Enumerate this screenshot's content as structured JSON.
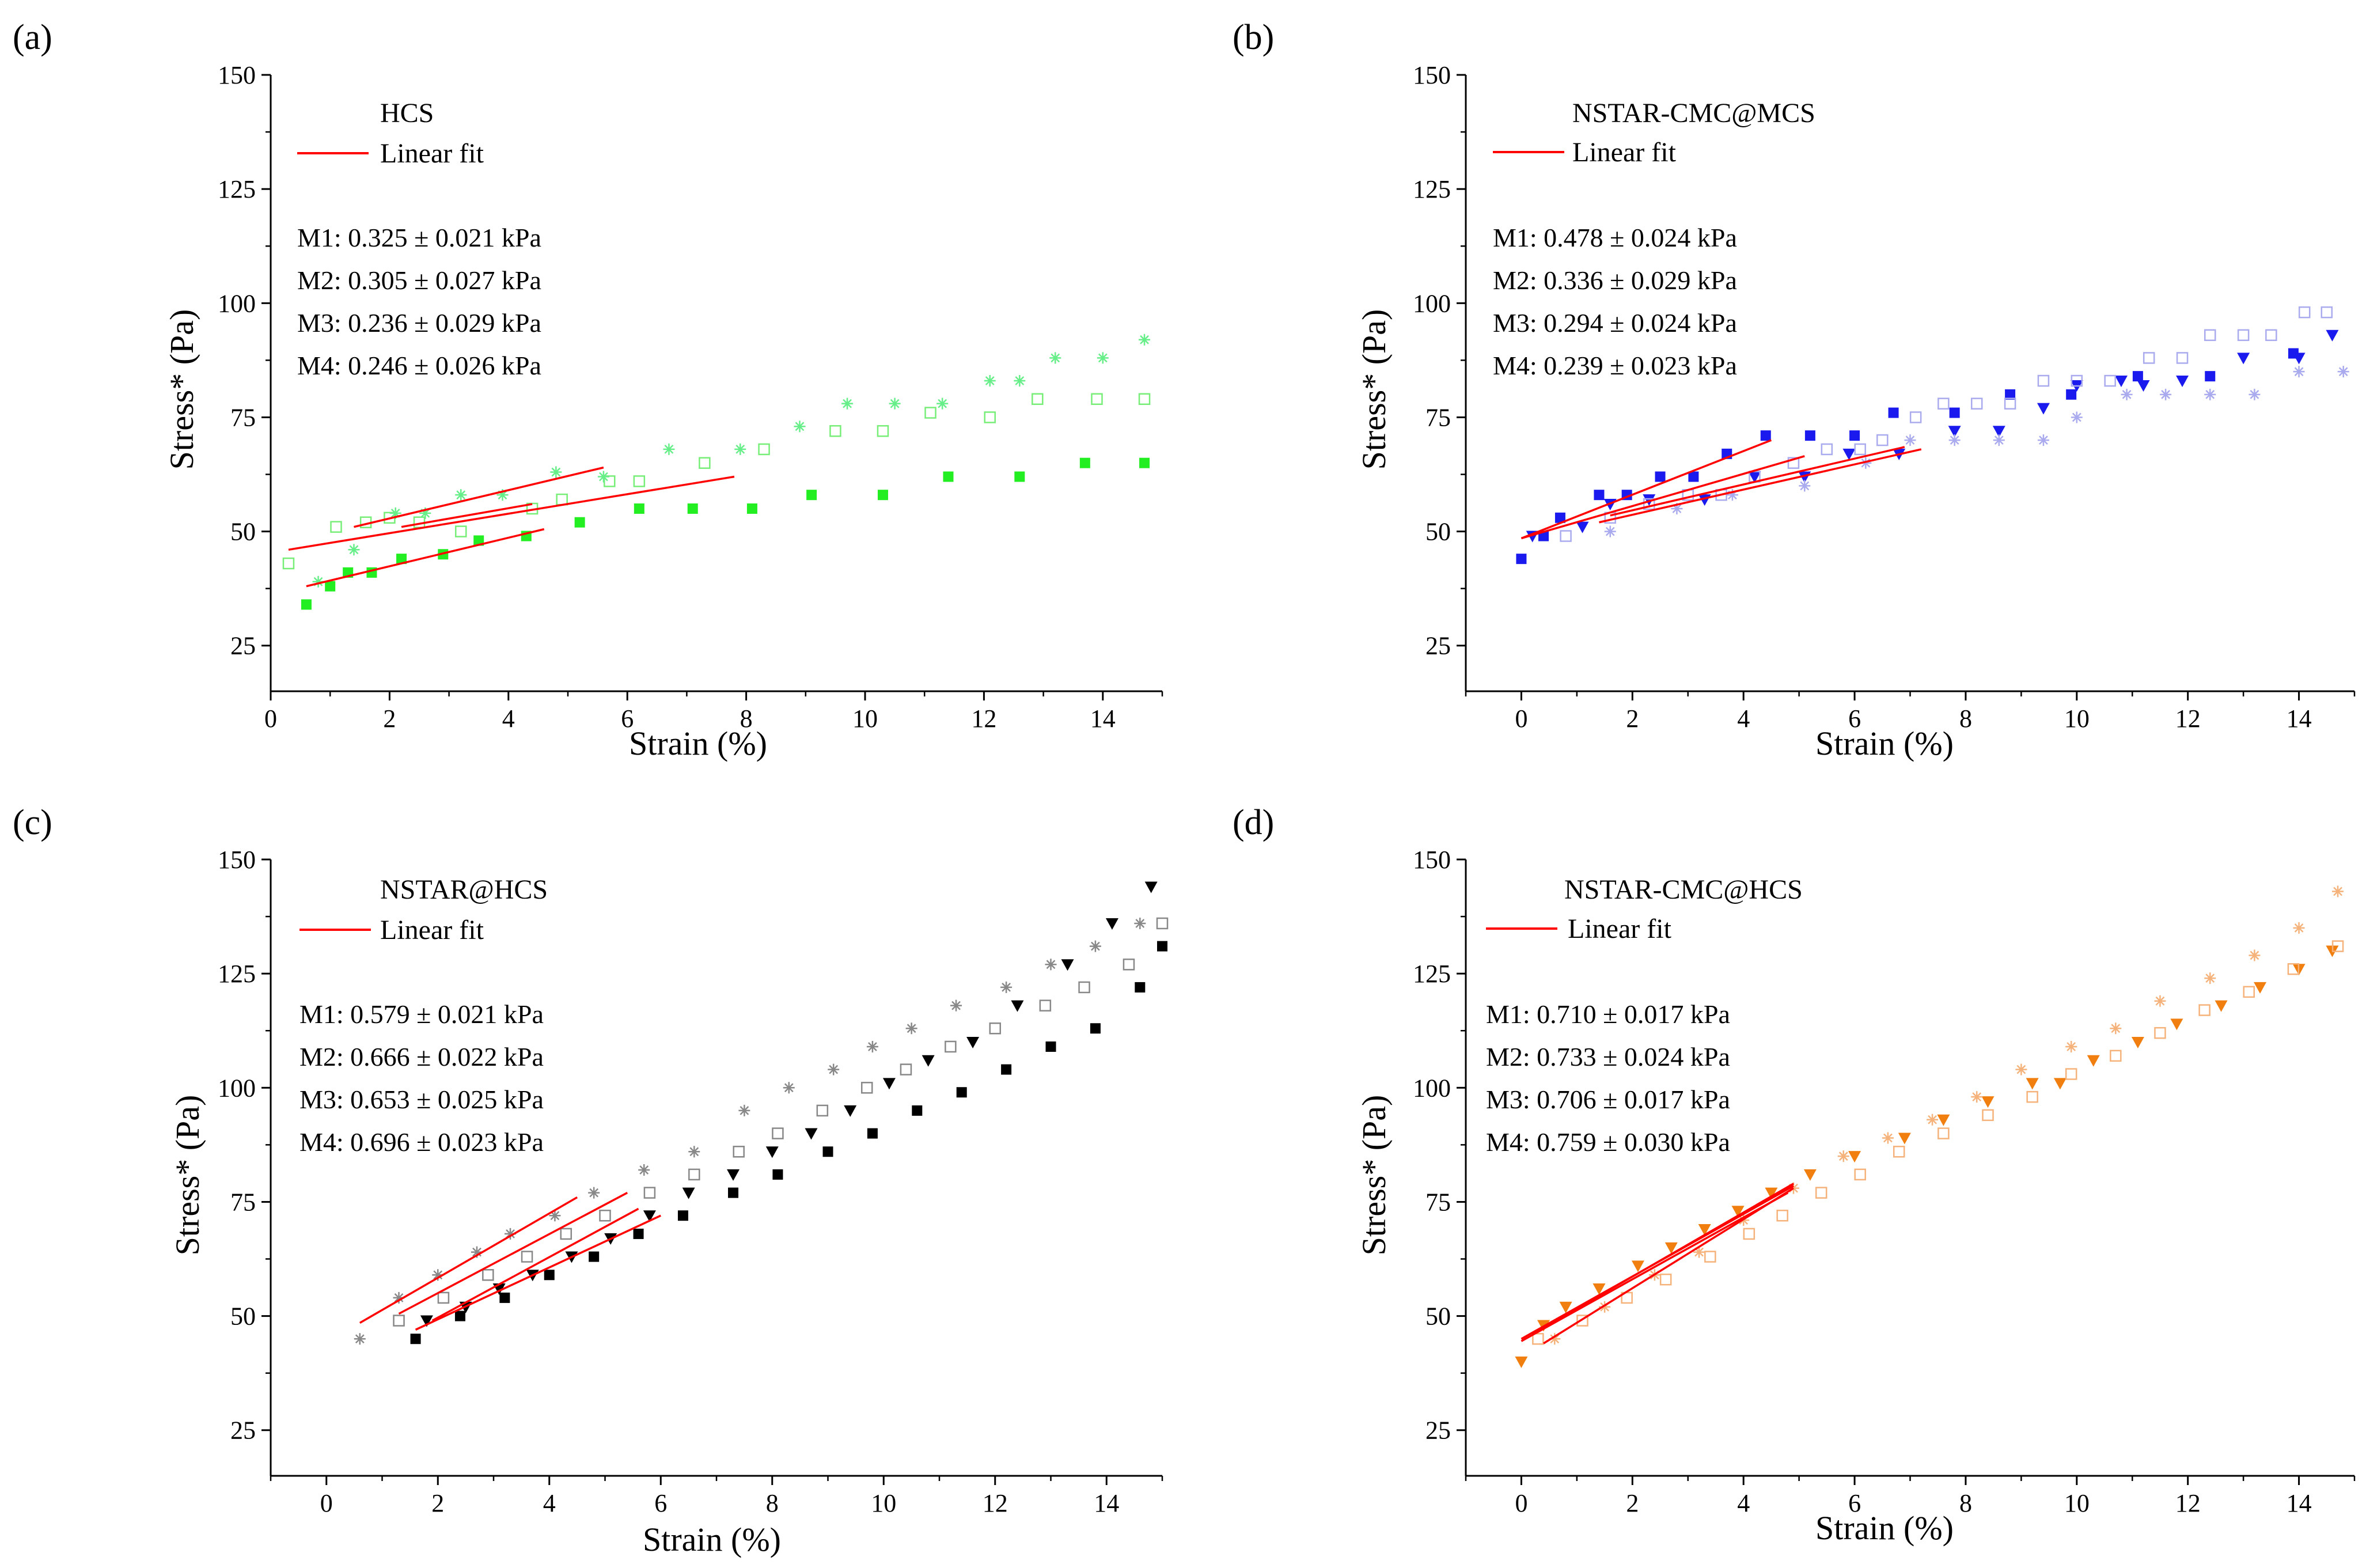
{
  "chart_data": [
    {
      "type": "scatter",
      "panel_label": "(a)",
      "xlabel": "Strain (%)",
      "ylabel": "Stress* (Pa)",
      "xlim": [
        0,
        15
      ],
      "ylim": [
        15,
        150
      ],
      "xticks": [
        0,
        2,
        4,
        6,
        8,
        10,
        12,
        14
      ],
      "yticks": [
        25,
        50,
        75,
        100,
        125,
        150
      ],
      "legend": {
        "title": "HCS",
        "fit_label": "Linear fit"
      },
      "annotations": [
        "M1: 0.325 ± 0.021 kPa",
        "M2: 0.305 ± 0.027 kPa",
        "M3: 0.236 ± 0.029 kPa",
        "M4: 0.246 ± 0.026 kPa"
      ],
      "series": [
        {
          "name": "M1",
          "marker": "square",
          "color": "#22ee22",
          "x": [
            0.6,
            1.0,
            1.3,
            1.7,
            2.2,
            2.9,
            3.5,
            4.3,
            5.2,
            6.2,
            7.1,
            8.1,
            9.1,
            10.3,
            11.4,
            12.6,
            13.7,
            14.7
          ],
          "y": [
            34,
            38,
            41,
            41,
            44,
            45,
            48,
            49,
            52,
            55,
            55,
            55,
            58,
            58,
            62,
            62,
            65,
            65
          ]
        },
        {
          "name": "M2",
          "marker": "open-square",
          "color": "#77ee77",
          "x": [
            0.3,
            1.1,
            1.6,
            2.0,
            2.5,
            3.2,
            4.4,
            4.9,
            5.7,
            6.2,
            7.3,
            8.3,
            9.5,
            10.3,
            11.1,
            12.1,
            12.9,
            13.9,
            14.7
          ],
          "y": [
            43,
            51,
            52,
            53,
            52,
            50,
            55,
            57,
            61,
            61,
            65,
            68,
            72,
            72,
            76,
            75,
            79,
            79,
            79
          ]
        },
        {
          "name": "M3",
          "marker": "star",
          "color": "#66ee88",
          "x": [
            0.8,
            1.4,
            2.1,
            2.6,
            3.2,
            3.9,
            4.8,
            5.6,
            6.7,
            7.9,
            8.9,
            9.7,
            10.5,
            11.3,
            12.1,
            12.6,
            13.2,
            14.0,
            14.7
          ],
          "y": [
            39,
            46,
            54,
            54,
            58,
            58,
            63,
            62,
            68,
            68,
            73,
            78,
            78,
            78,
            83,
            83,
            88,
            88,
            92
          ]
        }
      ],
      "fits": [
        {
          "name": "M1",
          "x": [
            0.6,
            4.6
          ],
          "y": [
            38.0,
            50.5
          ]
        },
        {
          "name": "M2",
          "x": [
            0.3,
            7.8
          ],
          "y": [
            46.0,
            62.0
          ]
        },
        {
          "name": "M3",
          "x": [
            1.4,
            5.6
          ],
          "y": [
            51.0,
            64.0
          ]
        },
        {
          "name": "M4",
          "x": [
            2.2,
            4.4
          ],
          "y": [
            51.0,
            56.0
          ]
        }
      ]
    },
    {
      "type": "scatter",
      "panel_label": "(b)",
      "xlabel": "Strain (%)",
      "ylabel": "Stress* (Pa)",
      "xlim": [
        -1,
        15
      ],
      "ylim": [
        15,
        150
      ],
      "xticks": [
        0,
        2,
        4,
        6,
        8,
        10,
        12,
        14
      ],
      "yticks": [
        25,
        50,
        75,
        100,
        125,
        150
      ],
      "legend": {
        "title": "NSTAR-CMC@MCS",
        "fit_label": "Linear fit"
      },
      "annotations": [
        "M1: 0.478 ± 0.024 kPa",
        "M2: 0.336 ± 0.029 kPa",
        "M3: 0.294 ± 0.024 kPa",
        "M4: 0.239 ± 0.023 kPa"
      ],
      "series": [
        {
          "name": "M1",
          "marker": "square",
          "color": "#1a1aee",
          "x": [
            0.0,
            0.4,
            0.7,
            1.4,
            1.9,
            2.5,
            3.1,
            3.7,
            4.4,
            5.2,
            6.0,
            6.7,
            7.8,
            8.8,
            9.9,
            11.1,
            12.4,
            13.9
          ],
          "y": [
            44,
            49,
            53,
            58,
            58,
            62,
            62,
            67,
            71,
            71,
            71,
            76,
            76,
            80,
            80,
            84,
            84,
            89
          ]
        },
        {
          "name": "M2",
          "marker": "triangle-down",
          "color": "#1a1aee",
          "x": [
            0.2,
            1.1,
            1.6,
            2.3,
            3.3,
            4.2,
            5.1,
            5.9,
            6.8,
            7.8,
            8.6,
            9.4,
            10.0,
            10.8,
            11.2,
            11.9,
            13.0,
            14.0,
            14.6
          ],
          "y": [
            49,
            51,
            56,
            57,
            57,
            62,
            62,
            67,
            67,
            72,
            72,
            77,
            82,
            83,
            82,
            83,
            88,
            88,
            93
          ]
        },
        {
          "name": "M3",
          "marker": "open-square",
          "color": "#aaaaee",
          "x": [
            0.8,
            1.6,
            2.3,
            3.0,
            3.6,
            4.2,
            4.9,
            5.5,
            6.1,
            6.5,
            7.1,
            7.6,
            8.2,
            8.8,
            9.4,
            10.0,
            10.6,
            11.3,
            11.9,
            12.4,
            13.0,
            13.5,
            14.1,
            14.5
          ],
          "y": [
            49,
            53,
            56,
            58,
            58,
            62,
            65,
            68,
            68,
            70,
            75,
            78,
            78,
            78,
            83,
            83,
            83,
            88,
            88,
            93,
            93,
            93,
            98,
            98
          ]
        },
        {
          "name": "M4",
          "marker": "star",
          "color": "#aaaaee",
          "x": [
            1.6,
            2.8,
            3.8,
            5.1,
            6.2,
            7.0,
            7.8,
            8.6,
            9.4,
            10.0,
            10.9,
            11.6,
            12.4,
            13.2,
            14.0,
            14.8
          ],
          "y": [
            50,
            55,
            58,
            60,
            65,
            70,
            70,
            70,
            70,
            75,
            80,
            80,
            80,
            80,
            85,
            85
          ]
        }
      ],
      "fits": [
        {
          "name": "M1",
          "x": [
            0.0,
            4.5
          ],
          "y": [
            48.5,
            70.0
          ]
        },
        {
          "name": "M2",
          "x": [
            0.0,
            5.1
          ],
          "y": [
            48.5,
            66.5
          ]
        },
        {
          "name": "M3",
          "x": [
            1.6,
            6.9
          ],
          "y": [
            53.5,
            68.5
          ]
        },
        {
          "name": "M4",
          "x": [
            1.4,
            7.2
          ],
          "y": [
            52.0,
            68.0
          ]
        }
      ]
    },
    {
      "type": "scatter",
      "panel_label": "(c)",
      "xlabel": "Strain (%)",
      "ylabel": "Stress* (Pa)",
      "xlim": [
        -1,
        15
      ],
      "ylim": [
        15,
        150
      ],
      "xticks": [
        0,
        2,
        4,
        6,
        8,
        10,
        12,
        14
      ],
      "yticks": [
        25,
        50,
        75,
        100,
        125,
        150
      ],
      "legend": {
        "title": "NSTAR@HCS",
        "fit_label": "Linear fit"
      },
      "annotations": [
        "M1: 0.579 ± 0.021 kPa",
        "M2: 0.666 ± 0.022 kPa",
        "M3: 0.653 ± 0.025 kPa",
        "M4: 0.696 ± 0.023 kPa"
      ],
      "series": [
        {
          "name": "M1",
          "marker": "square",
          "color": "#000000",
          "x": [
            1.6,
            2.4,
            3.2,
            4.0,
            4.8,
            5.6,
            6.4,
            7.3,
            8.1,
            9.0,
            9.8,
            10.6,
            11.4,
            12.2,
            13.0,
            13.8,
            14.6,
            15.0
          ],
          "y": [
            45,
            50,
            54,
            59,
            63,
            68,
            72,
            77,
            81,
            86,
            90,
            95,
            99,
            104,
            109,
            113,
            122,
            131
          ]
        },
        {
          "name": "M2",
          "marker": "triangle-down",
          "color": "#000000",
          "x": [
            1.8,
            2.5,
            3.1,
            3.7,
            4.4,
            5.1,
            5.8,
            6.5,
            7.3,
            8.0,
            8.7,
            9.4,
            10.1,
            10.8,
            11.6,
            12.4,
            13.3,
            14.1,
            14.8
          ],
          "y": [
            49,
            52,
            56,
            59,
            63,
            67,
            72,
            77,
            81,
            86,
            90,
            95,
            101,
            106,
            110,
            118,
            127,
            136,
            144
          ]
        },
        {
          "name": "M3",
          "marker": "open-square",
          "color": "#888888",
          "x": [
            1.3,
            2.1,
            2.9,
            3.6,
            4.3,
            5.0,
            5.8,
            6.6,
            7.4,
            8.1,
            8.9,
            9.7,
            10.4,
            11.2,
            12.0,
            12.9,
            13.6,
            14.4,
            15.0
          ],
          "y": [
            49,
            54,
            59,
            63,
            68,
            72,
            77,
            81,
            86,
            90,
            95,
            100,
            104,
            109,
            113,
            118,
            122,
            127,
            136
          ]
        },
        {
          "name": "M4",
          "marker": "star",
          "color": "#888888",
          "x": [
            0.6,
            1.3,
            2.0,
            2.7,
            3.3,
            4.1,
            4.8,
            5.7,
            6.6,
            7.5,
            8.3,
            9.1,
            9.8,
            10.5,
            11.3,
            12.2,
            13.0,
            13.8,
            14.6
          ],
          "y": [
            45,
            54,
            59,
            64,
            68,
            72,
            77,
            82,
            86,
            95,
            100,
            104,
            109,
            113,
            118,
            122,
            127,
            131,
            136
          ]
        }
      ],
      "fits": [
        {
          "name": "M1",
          "x": [
            1.6,
            6.0
          ],
          "y": [
            47.0,
            72.0
          ]
        },
        {
          "name": "M2",
          "x": [
            1.9,
            5.6
          ],
          "y": [
            49.0,
            73.5
          ]
        },
        {
          "name": "M3",
          "x": [
            1.3,
            5.4
          ],
          "y": [
            50.5,
            77.0
          ]
        },
        {
          "name": "M4",
          "x": [
            0.6,
            4.5
          ],
          "y": [
            48.5,
            76.0
          ]
        }
      ]
    },
    {
      "type": "scatter",
      "panel_label": "(d)",
      "xlabel": "Strain (%)",
      "ylabel": "Stress* (Pa)",
      "xlim": [
        -1,
        15
      ],
      "ylim": [
        15,
        150
      ],
      "xticks": [
        0,
        2,
        4,
        6,
        8,
        10,
        12,
        14
      ],
      "yticks": [
        25,
        50,
        75,
        100,
        125,
        150
      ],
      "legend": {
        "title": "NSTAR-CMC@HCS",
        "fit_label": "Linear fit"
      },
      "annotations": [
        "M1: 0.710 ± 0.017 kPa",
        "M2: 0.733 ± 0.024 kPa",
        "M3: 0.706 ± 0.017 kPa",
        "M4: 0.759 ± 0.030 kPa"
      ],
      "series": [
        {
          "name": "M1",
          "marker": "triangle-down",
          "color": "#f07f10",
          "x": [
            0.0,
            0.4,
            0.8,
            1.4,
            2.1,
            2.7,
            3.3,
            3.9,
            4.5,
            5.2,
            6.0,
            6.9,
            7.6,
            8.4,
            9.2,
            9.7,
            10.3,
            11.1,
            11.8,
            12.6,
            13.3,
            14.0,
            14.6
          ],
          "y": [
            40,
            48,
            52,
            56,
            61,
            65,
            69,
            73,
            77,
            81,
            85,
            89,
            93,
            97,
            101,
            101,
            106,
            110,
            114,
            118,
            122,
            126,
            130
          ]
        },
        {
          "name": "M2",
          "marker": "open-square",
          "color": "#f5b27a",
          "x": [
            0.3,
            1.1,
            1.9,
            2.6,
            3.4,
            4.1,
            4.7,
            5.4,
            6.1,
            6.8,
            7.6,
            8.4,
            9.2,
            9.9,
            10.7,
            11.5,
            12.3,
            13.1,
            13.9,
            14.7
          ],
          "y": [
            45,
            49,
            54,
            58,
            63,
            68,
            72,
            77,
            81,
            86,
            90,
            94,
            98,
            103,
            107,
            112,
            117,
            121,
            126,
            131
          ]
        },
        {
          "name": "M3",
          "marker": "star",
          "color": "#f5b27a",
          "x": [
            0.6,
            1.5,
            2.4,
            3.2,
            4.0,
            4.9,
            5.8,
            6.6,
            7.4,
            8.2,
            9.0,
            9.9,
            10.7,
            11.5,
            12.4,
            13.2,
            14.0,
            14.7
          ],
          "y": [
            45,
            52,
            59,
            64,
            71,
            78,
            85,
            89,
            93,
            98,
            104,
            109,
            113,
            119,
            124,
            129,
            135,
            143
          ]
        }
      ],
      "fits": [
        {
          "name": "M1",
          "x": [
            0.0,
            4.9
          ],
          "y": [
            45.0,
            78.5
          ]
        },
        {
          "name": "M2",
          "x": [
            0.2,
            4.9
          ],
          "y": [
            46.0,
            79.0
          ]
        },
        {
          "name": "M3",
          "x": [
            0.0,
            4.8
          ],
          "y": [
            44.5,
            77.0
          ]
        },
        {
          "name": "M4",
          "x": [
            0.4,
            4.9
          ],
          "y": [
            44.0,
            78.0
          ]
        }
      ]
    }
  ]
}
